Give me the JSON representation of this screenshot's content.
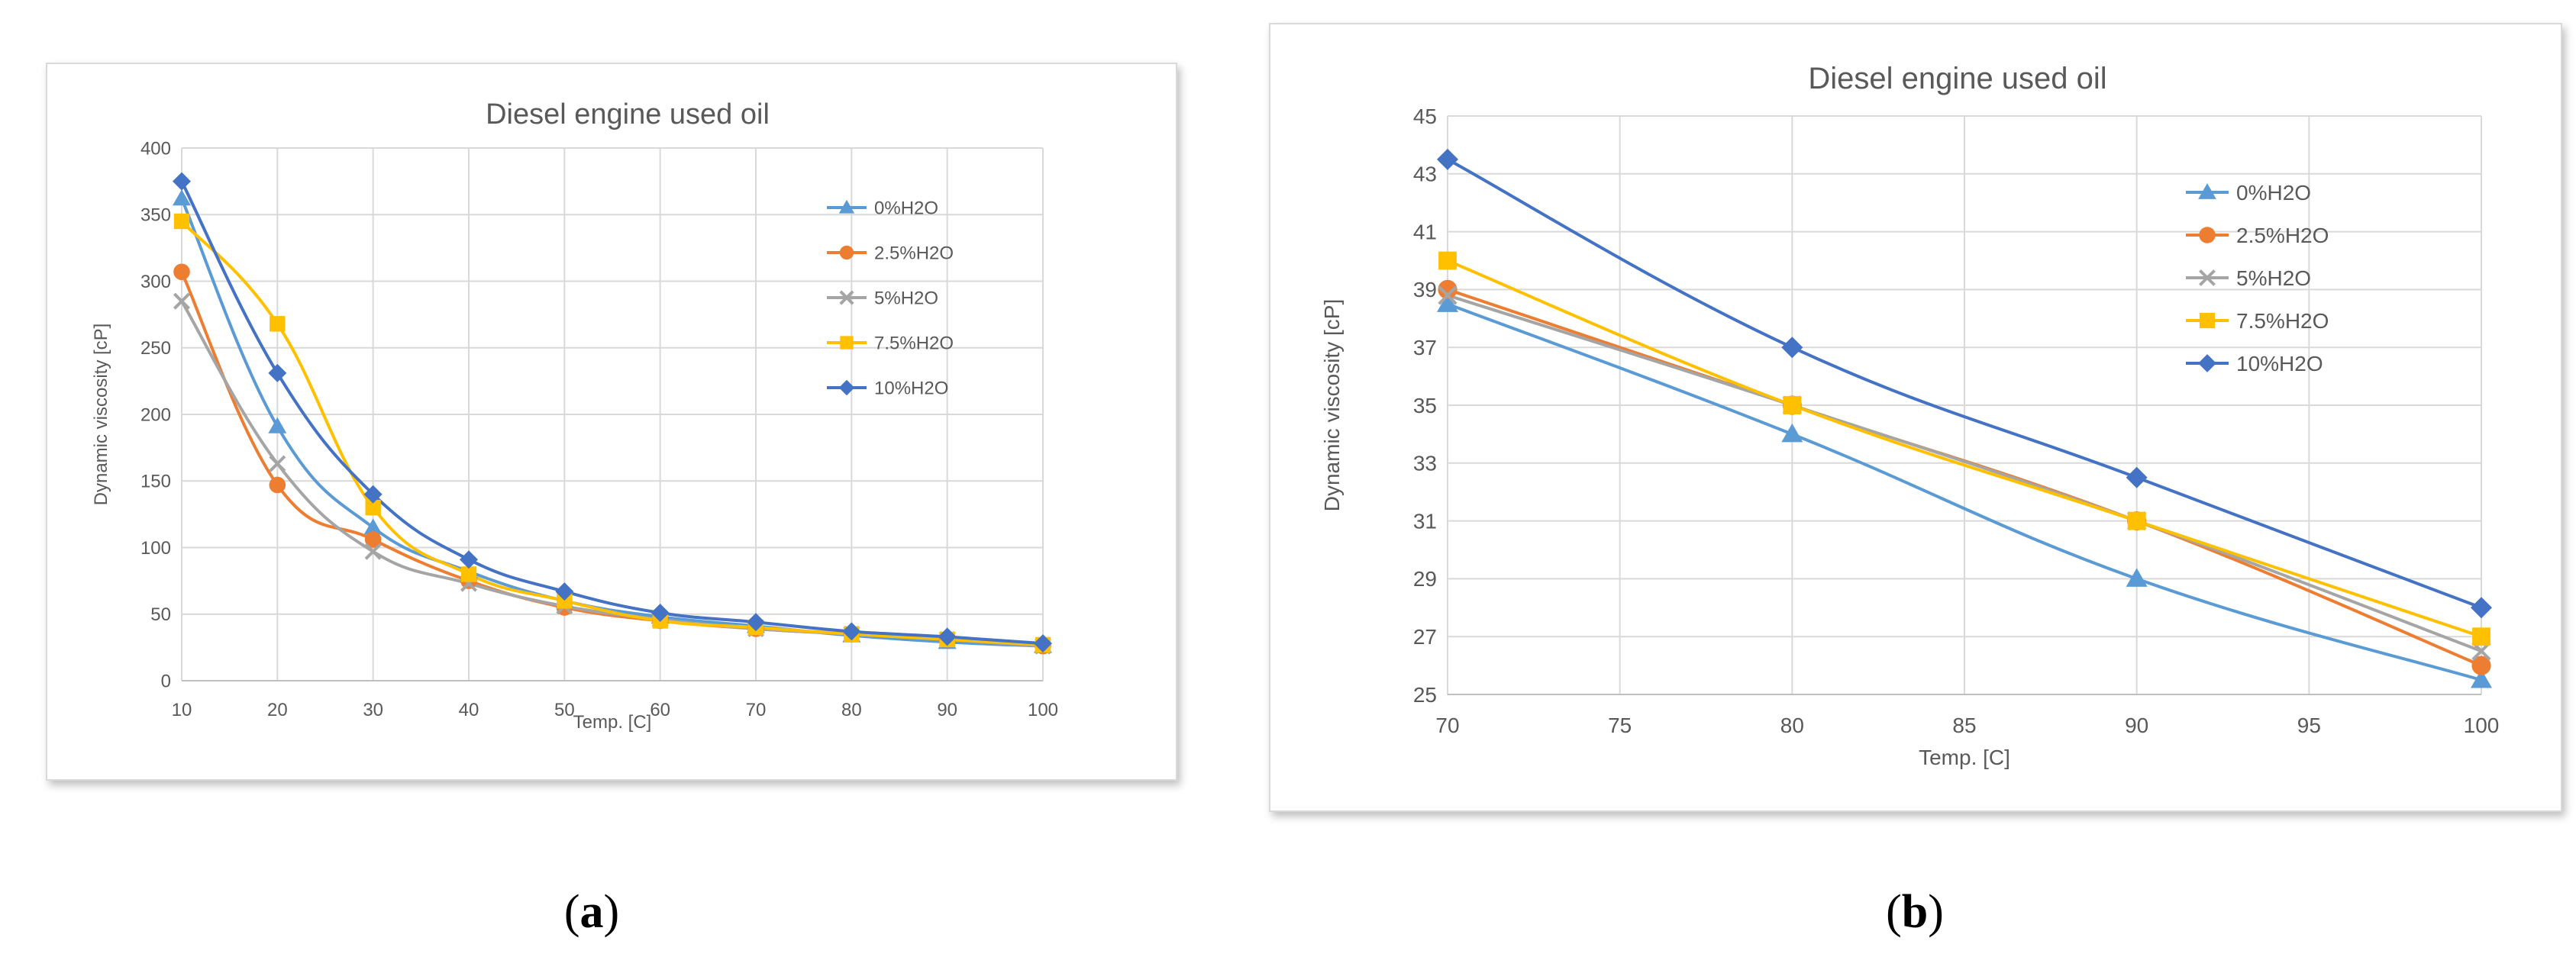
{
  "chart_data": [
    {
      "type": "line",
      "panel": "a",
      "title": "Diesel engine used oil",
      "xlabel": "Temp. [C]",
      "ylabel": "Dynamic viscosity [cP]",
      "xlim": [
        10,
        100
      ],
      "ylim": [
        0,
        400
      ],
      "xticks": [
        10,
        20,
        30,
        40,
        50,
        60,
        70,
        80,
        90,
        100
      ],
      "yticks": [
        0,
        50,
        100,
        150,
        200,
        250,
        300,
        350,
        400
      ],
      "grid": true,
      "legend_position": "top-right",
      "x": [
        10,
        20,
        30,
        40,
        50,
        60,
        70,
        80,
        90,
        100
      ],
      "series": [
        {
          "name": "0%H2O",
          "color": "#5b9bd5",
          "marker": "triangle",
          "values": [
            362,
            191,
            115,
            82,
            60,
            48,
            41,
            34,
            29,
            26
          ]
        },
        {
          "name": "2.5%H2O",
          "color": "#ed7d31",
          "marker": "circle",
          "values": [
            307,
            147,
            106,
            75,
            55,
            45,
            39,
            35,
            31,
            26
          ]
        },
        {
          "name": "5%H2O",
          "color": "#a5a5a5",
          "marker": "x",
          "values": [
            285,
            163,
            97,
            73,
            56,
            46,
            39,
            35,
            31,
            26
          ]
        },
        {
          "name": "7.5%H2O",
          "color": "#ffc000",
          "marker": "square",
          "values": [
            345,
            268,
            130,
            80,
            60,
            45,
            40,
            35,
            31,
            27
          ]
        },
        {
          "name": "10%H2O",
          "color": "#4472c4",
          "marker": "diamond",
          "values": [
            375,
            231,
            140,
            91,
            67,
            51,
            44,
            37,
            33,
            28
          ]
        }
      ]
    },
    {
      "type": "line",
      "panel": "b",
      "title": "Diesel engine used oil",
      "xlabel": "Temp. [C]",
      "ylabel": "Dynamic viscosity [cP]",
      "xlim": [
        70,
        100
      ],
      "ylim": [
        25,
        45
      ],
      "xticks": [
        70,
        75,
        80,
        85,
        90,
        95,
        100
      ],
      "yticks": [
        25,
        27,
        29,
        31,
        33,
        35,
        37,
        39,
        41,
        43,
        45
      ],
      "grid": true,
      "legend_position": "top-right",
      "x": [
        70,
        80,
        90,
        100
      ],
      "series": [
        {
          "name": "0%H2O",
          "color": "#5b9bd5",
          "marker": "triangle",
          "values": [
            38.5,
            34,
            29,
            25.5
          ]
        },
        {
          "name": "2.5%H2O",
          "color": "#ed7d31",
          "marker": "circle",
          "values": [
            39,
            35,
            31,
            26
          ]
        },
        {
          "name": "5%H2O",
          "color": "#a5a5a5",
          "marker": "x",
          "values": [
            38.8,
            35,
            31,
            26.5
          ]
        },
        {
          "name": "7.5%H2O",
          "color": "#ffc000",
          "marker": "square",
          "values": [
            40,
            35,
            31,
            27
          ]
        },
        {
          "name": "10%H2O",
          "color": "#4472c4",
          "marker": "diamond",
          "values": [
            43.5,
            37,
            32.5,
            28
          ]
        }
      ]
    }
  ],
  "captions": {
    "a": {
      "open": "(",
      "letter": "a",
      "close": ")"
    },
    "b": {
      "open": "(",
      "letter": "b",
      "close": ")"
    }
  }
}
